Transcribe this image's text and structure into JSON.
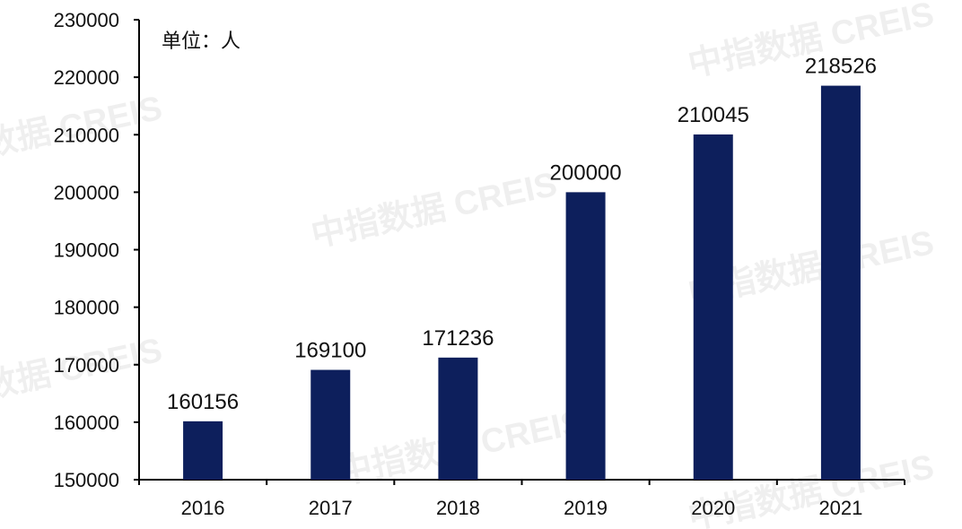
{
  "watermark": "中指数据 CREIS",
  "chart_data": {
    "type": "bar",
    "unit_label": "单位：人",
    "categories": [
      "2016",
      "2017",
      "2018",
      "2019",
      "2020",
      "2021"
    ],
    "values": [
      160156,
      169100,
      171236,
      200000,
      210045,
      218526
    ],
    "data_labels": [
      "160156",
      "169100",
      "171236",
      "200000",
      "210045",
      "218526"
    ],
    "ylim": [
      150000,
      230000
    ],
    "yticks": [
      150000,
      160000,
      170000,
      180000,
      190000,
      200000,
      210000,
      220000,
      230000
    ],
    "ytick_labels": [
      "150000",
      "160000",
      "170000",
      "180000",
      "190000",
      "200000",
      "210000",
      "220000",
      "230000"
    ],
    "title": "",
    "xlabel": "",
    "ylabel": "",
    "grid": false,
    "bar_color": "#0d1f5c",
    "axis_color": "#000000"
  }
}
